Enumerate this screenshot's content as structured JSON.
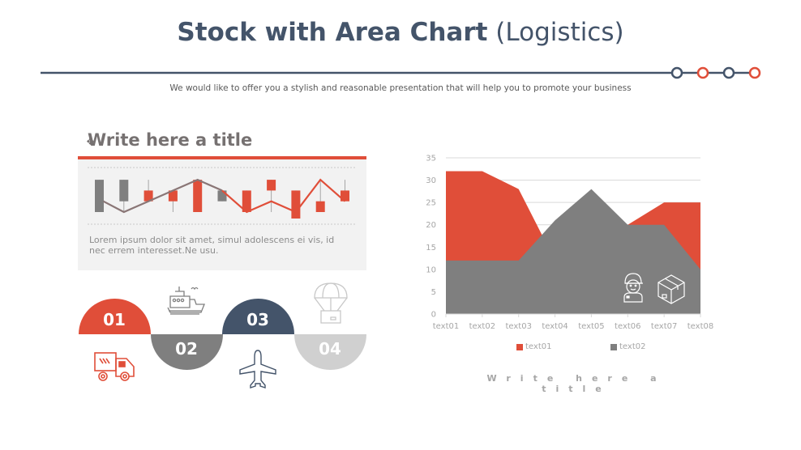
{
  "header": {
    "title_bold": "Stock with Area Chart",
    "title_light": " (Logistics)",
    "subtitle": "We would like to offer you a stylish and reasonable presentation that will help you to promote your business"
  },
  "decor": {
    "line_color": "#44546a",
    "dots": [
      {
        "color": "#44546a"
      },
      {
        "color": "#e04e39"
      },
      {
        "color": "#44546a"
      },
      {
        "color": "#e04e39"
      }
    ]
  },
  "left_card": {
    "bullet_icon": "diamond-bullet-icon",
    "title": "Write here a title",
    "body": "Lorem ipsum dolor sit amet, simul adolescens ei vis, id nec errem interesset.Ne usu."
  },
  "steps": [
    {
      "label": "01",
      "color": "#e04e39",
      "icon": "delivery-truck-icon"
    },
    {
      "label": "02",
      "color": "#7f7f7f",
      "icon": "cargo-ship-icon"
    },
    {
      "label": "03",
      "color": "#44546a",
      "icon": "airplane-icon"
    },
    {
      "label": "04",
      "color": "#d0d0d0",
      "icon": "parachute-package-icon"
    }
  ],
  "chart_data": [
    {
      "type": "stock",
      "title": "",
      "note": "Candlestick mini chart with overlaid close line, unlabeled axes (relative values)",
      "candles": [
        {
          "open": 4,
          "close": 1,
          "high": 4,
          "low": 1,
          "color": "#7f7f7f"
        },
        {
          "open": 4,
          "close": 2,
          "high": 4,
          "low": 1,
          "color": "#7f7f7f"
        },
        {
          "open": 2,
          "close": 3,
          "high": 4,
          "low": 2,
          "color": "#e04e39"
        },
        {
          "open": 2,
          "close": 3,
          "high": 3,
          "low": 1,
          "color": "#e04e39"
        },
        {
          "open": 1,
          "close": 4,
          "high": 4,
          "low": 1,
          "color": "#e04e39"
        },
        {
          "open": 3,
          "close": 2,
          "high": 3,
          "low": 2,
          "color": "#7f7f7f"
        },
        {
          "open": 1,
          "close": 3,
          "high": 3,
          "low": 1,
          "color": "#e04e39"
        },
        {
          "open": 3,
          "close": 4,
          "high": 4,
          "low": 1,
          "color": "#e04e39"
        },
        {
          "open": 0.4,
          "close": 3,
          "high": 3,
          "low": 0.4,
          "color": "#e04e39"
        },
        {
          "open": 1,
          "close": 2,
          "high": 4,
          "low": 1,
          "color": "#e04e39"
        },
        {
          "open": 2,
          "close": 3,
          "high": 4,
          "low": 2,
          "color": "#e04e39"
        }
      ],
      "line": [
        2,
        1,
        2,
        3,
        4,
        3,
        1,
        2,
        1,
        4,
        2
      ]
    },
    {
      "type": "area",
      "title": "Write here a title",
      "categories": [
        "text01",
        "text02",
        "text03",
        "text04",
        "text05",
        "text06",
        "text07",
        "text08"
      ],
      "series": [
        {
          "name": "text01",
          "color": "#e04e39",
          "values": [
            32,
            32,
            28,
            12,
            15,
            20,
            25,
            25
          ]
        },
        {
          "name": "text02",
          "color": "#7f7f7f",
          "values": [
            12,
            12,
            12,
            21,
            28,
            20,
            20,
            10
          ]
        }
      ],
      "yticks": [
        "0",
        "5",
        "10",
        "15",
        "20",
        "25",
        "30",
        "35"
      ],
      "ylim": [
        0,
        35
      ],
      "grid": true,
      "legend_position": "bottom",
      "overlay_icons": [
        "delivery-person-icon",
        "package-box-icon"
      ]
    }
  ]
}
